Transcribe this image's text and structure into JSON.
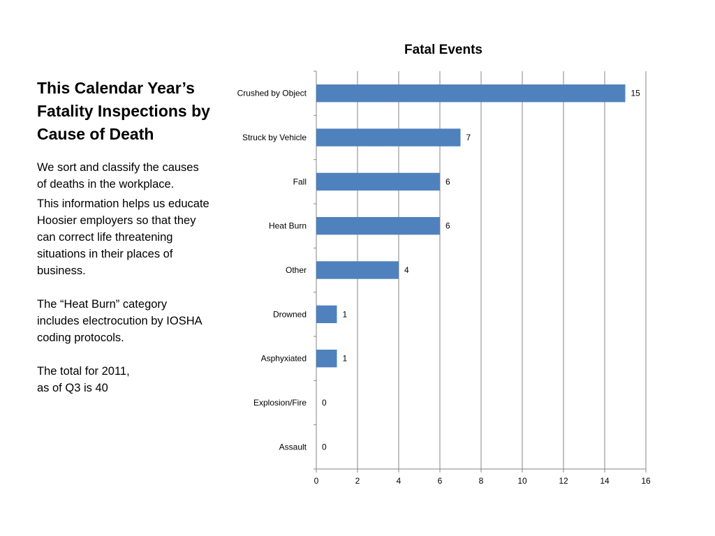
{
  "slide": {
    "title": "This Calendar Year’s Fatality Inspections by Cause of Death",
    "paragraphs": [
      "We sort and classify the causes of deaths in the workplace.",
      "This information helps us educate Hoosier employers so that they can correct life threatening situations in their places of business.",
      "The “Heat Burn” category includes electrocution by IOSHA coding protocols.",
      "The total for 2011,\nas of Q3 is 40"
    ]
  },
  "chart_data": {
    "type": "bar",
    "orientation": "horizontal",
    "title": "Fatal Events",
    "categories": [
      "Crushed by Object",
      "Struck by Vehicle",
      "Fall",
      "Heat Burn",
      "Other",
      "Drowned",
      "Asphyxiated",
      "Explosion/Fire",
      "Assault"
    ],
    "values": [
      15,
      7,
      6,
      6,
      4,
      1,
      1,
      0,
      0
    ],
    "xlim": [
      0,
      16
    ],
    "xticks": [
      0,
      2,
      4,
      6,
      8,
      10,
      12,
      14,
      16
    ],
    "grid": true,
    "data_labels": true,
    "bar_color": "#4F81BD",
    "grid_color": "#868686"
  }
}
